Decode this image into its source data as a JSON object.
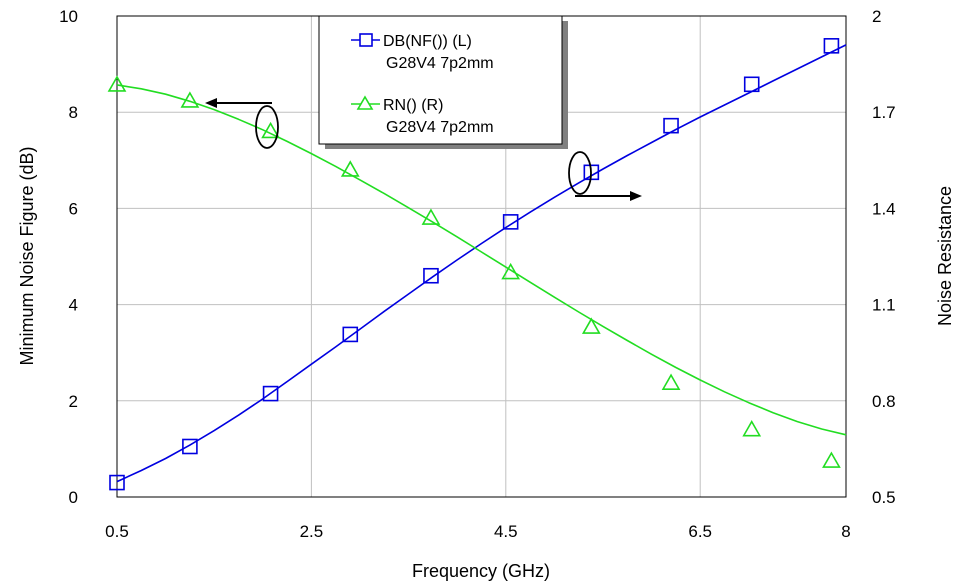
{
  "chart_data": {
    "type": "line",
    "xlabel": "Frequency (GHz)",
    "ylabel_left": "Minimum Noise Figure (dB)",
    "ylabel_right": "Noise Resistance",
    "x_ticks": [
      "0.5",
      "2.5",
      "4.5",
      "6.5",
      "8"
    ],
    "x_tick_values": [
      0.5,
      2.5,
      4.5,
      6.5,
      8
    ],
    "y_left_ticks": [
      "0",
      "2",
      "4",
      "6",
      "8",
      "10"
    ],
    "y_left_tick_values": [
      0,
      2,
      4,
      6,
      8,
      10
    ],
    "y_right_ticks": [
      "0.5",
      "0.8",
      "1.1",
      "1.4",
      "1.7",
      "2"
    ],
    "y_right_tick_values": [
      0.5,
      0.8,
      1.1,
      1.4,
      1.7,
      2
    ],
    "xlim": [
      0.5,
      8
    ],
    "ylim_left": [
      0,
      10
    ],
    "ylim_right": [
      0.5,
      2
    ],
    "grid": true,
    "legend_position": "top-center",
    "series": [
      {
        "name": "DB(NF()) (L)",
        "name_line2": "G28V4 7p2mm",
        "axis": "left",
        "color": "#0000e0",
        "marker": "square",
        "curve_x": [
          0.5,
          0.75,
          1,
          1.25,
          1.5,
          1.75,
          2,
          2.25,
          2.5,
          2.75,
          3,
          3.25,
          3.5,
          3.75,
          4,
          4.25,
          4.5,
          4.75,
          5,
          5.25,
          5.5,
          5.75,
          6,
          6.25,
          6.5,
          6.75,
          7,
          7.25,
          7.5,
          7.75,
          8
        ],
        "curve_y": [
          0.32,
          0.55,
          0.8,
          1.08,
          1.38,
          1.7,
          2.04,
          2.4,
          2.76,
          3.12,
          3.49,
          3.86,
          4.22,
          4.58,
          4.93,
          5.27,
          5.6,
          5.92,
          6.23,
          6.53,
          6.82,
          7.1,
          7.37,
          7.64,
          7.9,
          8.15,
          8.4,
          8.65,
          8.9,
          9.15,
          9.4
        ],
        "marker_x": [
          0.5,
          1.25,
          2.08,
          2.9,
          3.73,
          4.55,
          5.38,
          6.2,
          7.03,
          7.85
        ],
        "marker_y": [
          0.3,
          1.05,
          2.15,
          3.38,
          4.6,
          5.72,
          6.75,
          7.72,
          8.58,
          9.38
        ]
      },
      {
        "name": "RN() (R)",
        "name_line2": "G28V4 7p2mm",
        "axis": "right",
        "color": "#22dd22",
        "marker": "triangle",
        "curve_x": [
          0.5,
          0.75,
          1,
          1.25,
          1.5,
          1.75,
          2,
          2.25,
          2.5,
          2.75,
          3,
          3.25,
          3.5,
          3.75,
          4,
          4.25,
          4.5,
          4.75,
          5,
          5.25,
          5.5,
          5.75,
          6,
          6.25,
          6.5,
          6.75,
          7,
          7.25,
          7.5,
          7.75,
          8
        ],
        "curve_y": [
          1.785,
          1.773,
          1.756,
          1.734,
          1.708,
          1.678,
          1.645,
          1.609,
          1.571,
          1.531,
          1.489,
          1.446,
          1.402,
          1.357,
          1.311,
          1.264,
          1.217,
          1.17,
          1.123,
          1.077,
          1.032,
          0.988,
          0.945,
          0.904,
          0.865,
          0.828,
          0.794,
          0.763,
          0.735,
          0.712,
          0.694
        ],
        "marker_x": [
          0.5,
          1.25,
          2.08,
          2.9,
          3.73,
          4.55,
          5.38,
          6.2,
          7.03,
          7.85
        ],
        "marker_y": [
          1.785,
          1.735,
          1.64,
          1.52,
          1.37,
          1.2,
          1.03,
          0.855,
          0.71,
          0.612
        ]
      }
    ],
    "annotations": [
      {
        "type": "ellipse-arrow",
        "series": "RN() (R)",
        "points_to": "left-axis"
      },
      {
        "type": "ellipse-arrow",
        "series": "DB(NF()) (L)",
        "points_to": "right-axis"
      }
    ]
  }
}
